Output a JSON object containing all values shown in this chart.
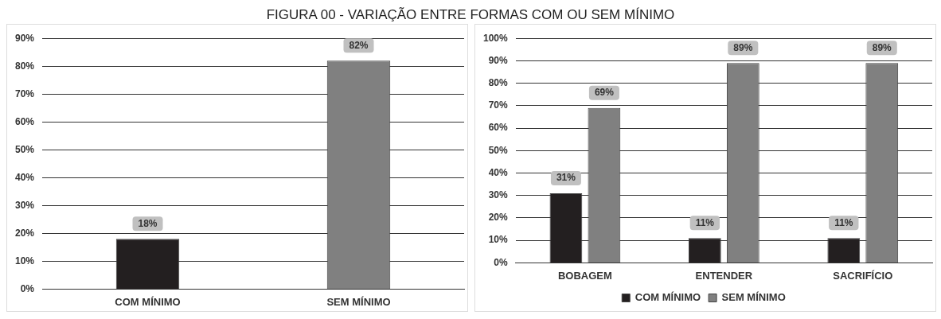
{
  "chart_data": [
    {
      "type": "bar",
      "title": "FIGURA 00 - VARIAÇÃO ENTRE FORMAS COM OU SEM MÍNIMO",
      "categories": [
        "COM MÍNIMO",
        "SEM MÍNIMO"
      ],
      "values": [
        18,
        82
      ],
      "colors": [
        "#231f20",
        "#808080"
      ],
      "value_labels": [
        "18%",
        "82%"
      ],
      "ylim": [
        0,
        90
      ],
      "yticks": [
        {
          "value": 0,
          "label": "0%"
        },
        {
          "value": 10,
          "label": "10%"
        },
        {
          "value": 20,
          "label": "20%"
        },
        {
          "value": 30,
          "label": "30%"
        },
        {
          "value": 40,
          "label": "40%"
        },
        {
          "value": 50,
          "label": "50%"
        },
        {
          "value": 60,
          "label": "60%"
        },
        {
          "value": 70,
          "label": "70%"
        },
        {
          "value": 80,
          "label": "80%"
        },
        {
          "value": 90,
          "label": "90%"
        }
      ],
      "grid": "y",
      "legend": false
    },
    {
      "type": "bar",
      "categories": [
        "BOBAGEM",
        "ENTENDER",
        "SACRIFÍCIO"
      ],
      "series": [
        {
          "name": "COM MÍNIMO",
          "color": "#231f20",
          "values": [
            31,
            11,
            11
          ],
          "value_labels": [
            "31%",
            "11%",
            "11%"
          ]
        },
        {
          "name": "SEM MÍNIMO",
          "color": "#808080",
          "values": [
            69,
            89,
            89
          ],
          "value_labels": [
            "69%",
            "89%",
            "89%"
          ]
        }
      ],
      "ylim": [
        0,
        100
      ],
      "yticks": [
        {
          "value": 0,
          "label": "0%"
        },
        {
          "value": 10,
          "label": "10%"
        },
        {
          "value": 20,
          "label": "20%"
        },
        {
          "value": 30,
          "label": "30%"
        },
        {
          "value": 40,
          "label": "40%"
        },
        {
          "value": 50,
          "label": "50%"
        },
        {
          "value": 60,
          "label": "60%"
        },
        {
          "value": 70,
          "label": "70%"
        },
        {
          "value": 80,
          "label": "80%"
        },
        {
          "value": 90,
          "label": "90%"
        },
        {
          "value": 100,
          "label": "100%"
        }
      ],
      "grid": "y",
      "legend": "bottom"
    }
  ]
}
